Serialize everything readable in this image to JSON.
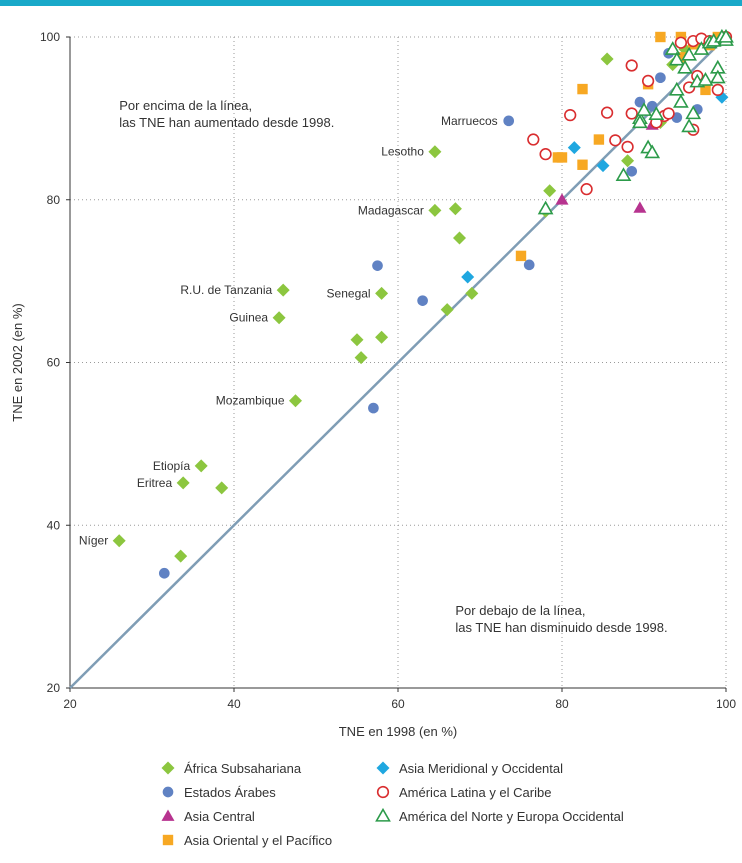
{
  "colors": {
    "topbar": "#19a9c9",
    "axis": "#333333",
    "grid": "#9a9a9a",
    "diagonal": "#7f9db5",
    "text": "#333333"
  },
  "chart_data": {
    "type": "scatter",
    "xlabel": "TNE en 1998 (en %)",
    "ylabel": "TNE en 2002 (en %)",
    "xlim": [
      20,
      100
    ],
    "ylim": [
      20,
      100
    ],
    "xticks": [
      20,
      40,
      60,
      80,
      100
    ],
    "yticks": [
      20,
      40,
      60,
      80,
      100
    ],
    "grid": true,
    "reference_line": [
      [
        20,
        20
      ],
      [
        100,
        100
      ]
    ],
    "annotations": [
      {
        "id": "above",
        "lines": [
          "Por encima de la línea,",
          "las TNE han aumentado desde 1998."
        ],
        "x": 26,
        "y": 91
      },
      {
        "id": "below",
        "lines": [
          "Por debajo de la línea,",
          "las TNE han disminuido desde 1998."
        ],
        "x": 67,
        "y": 29
      }
    ],
    "series": [
      {
        "name": "África Subsahariana",
        "marker": "diamond",
        "color": "#8cc63f",
        "filled": true,
        "points": [
          [
            26,
            38.1
          ],
          [
            33.5,
            36.2
          ],
          [
            33.8,
            45.2
          ],
          [
            36,
            47.3
          ],
          [
            38.5,
            44.6
          ],
          [
            45.5,
            65.5
          ],
          [
            46,
            68.9
          ],
          [
            47.5,
            55.3
          ],
          [
            55,
            62.8
          ],
          [
            55.5,
            60.6
          ],
          [
            58,
            63.1
          ],
          [
            58,
            68.5
          ],
          [
            64.5,
            85.9
          ],
          [
            64.5,
            78.7
          ],
          [
            66,
            66.5
          ],
          [
            67,
            78.9
          ],
          [
            67.5,
            75.3
          ],
          [
            69,
            68.5
          ],
          [
            78,
            78.6
          ],
          [
            78.5,
            81.1
          ],
          [
            85.5,
            97.3
          ],
          [
            88,
            84.8
          ],
          [
            92,
            89.5
          ],
          [
            93.5,
            96.6
          ],
          [
            95,
            98.5
          ],
          [
            97,
            99.2
          ]
        ]
      },
      {
        "name": "Estados Árabes",
        "marker": "circle",
        "color": "#6082c3",
        "filled": true,
        "points": [
          [
            31.5,
            34.1
          ],
          [
            57,
            54.4
          ],
          [
            57.5,
            71.9
          ],
          [
            63,
            67.6
          ],
          [
            73.5,
            89.7
          ],
          [
            76,
            72
          ],
          [
            88.5,
            83.5
          ],
          [
            89.5,
            92
          ],
          [
            91,
            91.5
          ],
          [
            92,
            95
          ],
          [
            93,
            98
          ],
          [
            94,
            90.1
          ],
          [
            96.5,
            91.1
          ],
          [
            97,
            94.6
          ]
        ]
      },
      {
        "name": "Asia Central",
        "marker": "triangle",
        "color": "#b7338f",
        "filled": true,
        "points": [
          [
            80,
            80
          ],
          [
            89.5,
            79
          ],
          [
            91,
            89.2
          ],
          [
            99.5,
            99.8
          ]
        ]
      },
      {
        "name": "Asia Oriental y el Pacífico",
        "marker": "square",
        "color": "#f7a823",
        "filled": true,
        "points": [
          [
            75,
            73.1
          ],
          [
            79.5,
            85.2
          ],
          [
            80,
            85.2
          ],
          [
            82.5,
            93.6
          ],
          [
            82.5,
            84.3
          ],
          [
            84.5,
            87.4
          ],
          [
            90.5,
            94.2
          ],
          [
            92,
            100
          ],
          [
            94.5,
            100
          ],
          [
            94.5,
            97.5
          ],
          [
            96,
            99.1
          ],
          [
            97.5,
            93.5
          ],
          [
            98,
            99
          ],
          [
            99,
            100
          ],
          [
            100,
            99.8
          ]
        ]
      },
      {
        "name": "Asia Meridional y Occidental",
        "marker": "diamond",
        "color": "#1fa7e0",
        "filled": true,
        "points": [
          [
            68.5,
            70.5
          ],
          [
            81.5,
            86.4
          ],
          [
            85,
            84.2
          ],
          [
            99.5,
            92.6
          ]
        ]
      },
      {
        "name": "América Latina y el Caribe",
        "marker": "circle",
        "color": "#d92d2f",
        "filled": false,
        "points": [
          [
            76.5,
            87.4
          ],
          [
            78,
            85.6
          ],
          [
            81,
            90.4
          ],
          [
            83,
            81.3
          ],
          [
            85.5,
            90.7
          ],
          [
            86.5,
            87.3
          ],
          [
            88,
            86.5
          ],
          [
            88.5,
            96.5
          ],
          [
            88.5,
            90.6
          ],
          [
            90.5,
            94.6
          ],
          [
            91.5,
            89.5
          ],
          [
            92.5,
            90.3
          ],
          [
            93,
            90.6
          ],
          [
            94.5,
            99.3
          ],
          [
            95.5,
            93.8
          ],
          [
            96,
            99.5
          ],
          [
            96,
            88.6
          ],
          [
            96.5,
            95.2
          ],
          [
            97,
            99.8
          ],
          [
            98,
            99.5
          ],
          [
            99,
            93.5
          ],
          [
            100,
            100
          ]
        ]
      },
      {
        "name": "América del Norte y Europa Occidental",
        "marker": "triangle",
        "color": "#2c9b4a",
        "filled": false,
        "points": [
          [
            78,
            78.9
          ],
          [
            87.5,
            83
          ],
          [
            89.5,
            90
          ],
          [
            89.5,
            89.5
          ],
          [
            90,
            91
          ],
          [
            90.5,
            86.4
          ],
          [
            91,
            85.8
          ],
          [
            91.5,
            90.5
          ],
          [
            93.5,
            98.5
          ],
          [
            94,
            97.2
          ],
          [
            94,
            93.5
          ],
          [
            94.5,
            92
          ],
          [
            95,
            96.2
          ],
          [
            95.5,
            97.8
          ],
          [
            95.5,
            89
          ],
          [
            96,
            90.6
          ],
          [
            96.5,
            94.5
          ],
          [
            97,
            98.5
          ],
          [
            97.5,
            94.7
          ],
          [
            98,
            99.3
          ],
          [
            98.5,
            99.5
          ],
          [
            99,
            96.2
          ],
          [
            99,
            95
          ],
          [
            99.5,
            100
          ],
          [
            100,
            99.6
          ],
          [
            100,
            100
          ]
        ]
      }
    ],
    "labels": [
      {
        "text": "Marruecos",
        "x": 73.5,
        "y": 89.7
      },
      {
        "text": "Lesotho",
        "x": 64.5,
        "y": 85.9
      },
      {
        "text": "Madagascar",
        "x": 64.5,
        "y": 78.7
      },
      {
        "text": "R.U. de Tanzania",
        "x": 46,
        "y": 68.9
      },
      {
        "text": "Senegal",
        "x": 58,
        "y": 68.5
      },
      {
        "text": "Guinea",
        "x": 45.5,
        "y": 65.5
      },
      {
        "text": "Mozambique",
        "x": 47.5,
        "y": 55.3
      },
      {
        "text": "Etiopía",
        "x": 36,
        "y": 47.3
      },
      {
        "text": "Eritrea",
        "x": 33.8,
        "y": 45.2
      },
      {
        "text": "Níger",
        "x": 26,
        "y": 38.1
      }
    ]
  }
}
